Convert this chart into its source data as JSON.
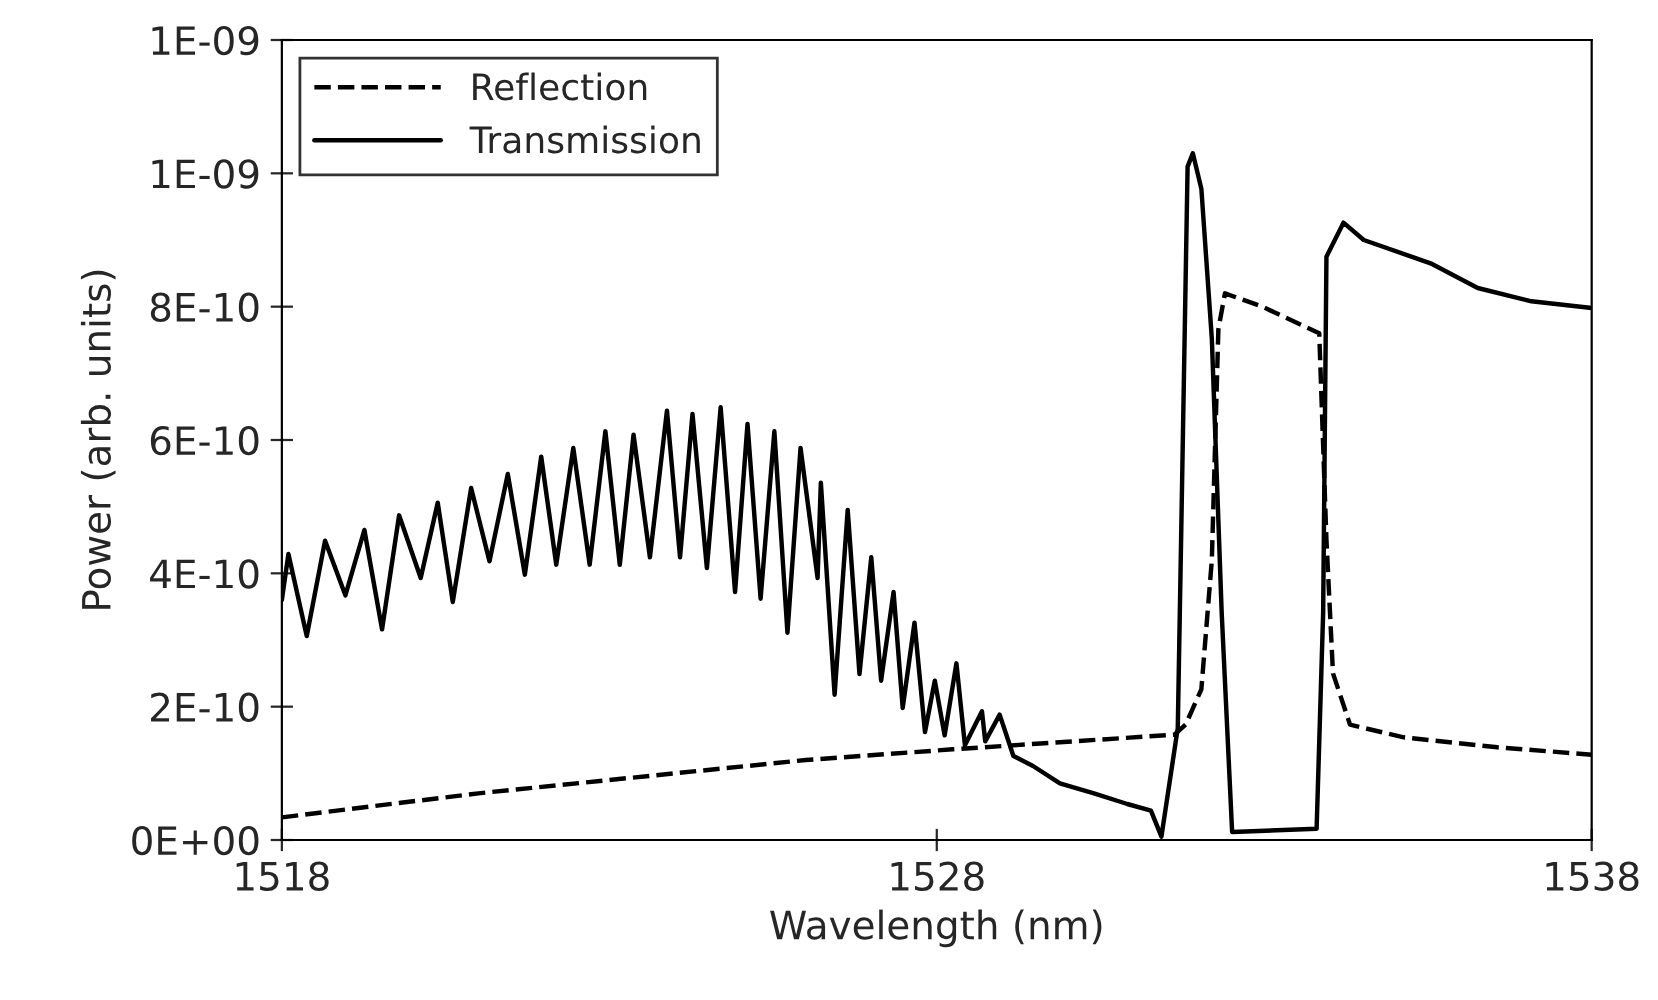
{
  "chart_data": {
    "type": "line",
    "xlabel": "Wavelength (nm)",
    "ylabel": "Power (arb. units)",
    "xlim": [
      1518,
      1538
    ],
    "xticks": [
      1518,
      1528,
      1538
    ],
    "ylim": [
      0,
      1.2e-09
    ],
    "yticks": [
      {
        "value": 0,
        "label": "0E+00"
      },
      {
        "value": 2e-10,
        "label": "2E-10"
      },
      {
        "value": 4e-10,
        "label": "4E-10"
      },
      {
        "value": 6e-10,
        "label": "6E-10"
      },
      {
        "value": 8e-10,
        "label": "8E-10"
      },
      {
        "value": 1e-09,
        "label": "1E-09"
      },
      {
        "value": 1.2e-09,
        "label": "1E-09"
      }
    ],
    "grid": false,
    "legend": "top left",
    "marker": "none",
    "series": [
      {
        "name": "Reflection",
        "color": "#000000",
        "line_style": "dashed",
        "x": [
          1518,
          1521,
          1524,
          1526,
          1528.24,
          1531.63,
          1531.8,
          1532.04,
          1532.2,
          1532.3,
          1532.4,
          1532.97,
          1533.84,
          1533.95,
          1534.05,
          1534.31,
          1535.13,
          1536.56,
          1538
        ],
        "values": [
          3.4e-11,
          7e-11,
          1e-10,
          1.2e-10,
          1.36e-10,
          1.58e-10,
          1.73e-10,
          2.26e-10,
          4.2e-10,
          7.66e-10,
          8.2e-10,
          8e-10,
          7.6e-10,
          4.5e-10,
          2.5e-10,
          1.73e-10,
          1.54e-10,
          1.39e-10,
          1.28e-10
        ]
      },
      {
        "name": "Transmission",
        "color": "#000000",
        "line_style": "solid",
        "x": [
          1518,
          1518.1,
          1518.38,
          1518.66,
          1518.97,
          1519.26,
          1519.53,
          1519.79,
          1520.12,
          1520.38,
          1520.61,
          1520.89,
          1521.17,
          1521.45,
          1521.71,
          1521.96,
          1522.19,
          1522.45,
          1522.7,
          1522.94,
          1523.16,
          1523.37,
          1523.62,
          1523.88,
          1524.08,
          1524.27,
          1524.49,
          1524.7,
          1524.92,
          1525.11,
          1525.31,
          1525.52,
          1525.72,
          1525.92,
          1526.18,
          1526.23,
          1526.44,
          1526.64,
          1526.82,
          1527.0,
          1527.15,
          1527.34,
          1527.48,
          1527.66,
          1527.82,
          1527.97,
          1528.12,
          1528.3,
          1528.43,
          1528.69,
          1528.74,
          1528.96,
          1529.17,
          1529.47,
          1529.88,
          1530.4,
          1530.91,
          1531.27,
          1531.43,
          1531.68,
          1531.73,
          1531.83,
          1531.91,
          1532.04,
          1532.2,
          1532.35,
          1532.51,
          1533.8,
          1533.9,
          1533.95,
          1534.21,
          1534.52,
          1535.54,
          1536.26,
          1537.08,
          1538
        ],
        "values": [
          3.6e-10,
          4.29e-10,
          3.06e-10,
          4.49e-10,
          3.67e-10,
          4.65e-10,
          3.16e-10,
          4.87e-10,
          3.93e-10,
          5.06e-10,
          3.57e-10,
          5.28e-10,
          4.18e-10,
          5.49e-10,
          3.98e-10,
          5.75e-10,
          4.13e-10,
          5.88e-10,
          4.13e-10,
          6.13e-10,
          4.13e-10,
          6.08e-10,
          4.24e-10,
          6.44e-10,
          4.24e-10,
          6.39e-10,
          4.08e-10,
          6.49e-10,
          3.72e-10,
          6.24e-10,
          3.62e-10,
          6.13e-10,
          3.11e-10,
          5.88e-10,
          3.93e-10,
          5.36e-10,
          2.18e-10,
          4.95e-10,
          2.49e-10,
          4.24e-10,
          2.39e-10,
          3.72e-10,
          1.98e-10,
          3.26e-10,
          1.62e-10,
          2.39e-10,
          1.57e-10,
          2.65e-10,
          1.42e-10,
          1.93e-10,
          1.48e-10,
          1.88e-10,
          1.26e-10,
          1.11e-10,
          8.5e-11,
          7e-11,
          5.4e-11,
          4.4e-11,
          5e-12,
          1.68e-10,
          4.46e-10,
          1.01e-09,
          1.03e-09,
          9.77e-10,
          7.52e-10,
          3.42e-10,
          1.2e-11,
          1.7e-11,
          3.42e-10,
          8.75e-10,
          9.26e-10,
          9e-10,
          8.65e-10,
          8.28e-10,
          8.08e-10,
          7.98e-10
        ]
      }
    ]
  }
}
